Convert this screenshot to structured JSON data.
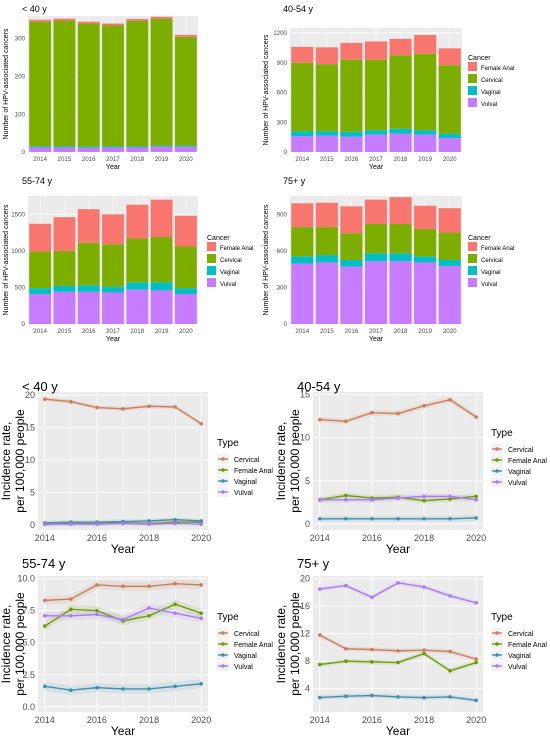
{
  "colors": {
    "Female Anal": "#F8766D",
    "Cervical": "#7CAE00",
    "Vaginal": "#00BFC4",
    "Vulval": "#C77CFF",
    "line_Cervical": "#C87E5A",
    "line_Female Anal": "#6E9A00",
    "line_Vaginal": "#3F8FB0",
    "line_Vulval": "#A97CF0",
    "panel_bg": "#EBEBEB",
    "grid": "#FFFFFF"
  },
  "chart_data": [
    {
      "type": "bar",
      "stacked": true,
      "title": "< 40 y",
      "xlabel": "Year",
      "ylabel": "Number of HPV-associated cancers",
      "categories": [
        "2014",
        "2015",
        "2016",
        "2017",
        "2018",
        "2019",
        "2020"
      ],
      "ylim": [
        0,
        360
      ],
      "yticks": [
        0,
        100,
        200,
        300
      ],
      "legend": null,
      "series": [
        {
          "name": "Vulval",
          "values": [
            12,
            12,
            11,
            12,
            12,
            14,
            14
          ]
        },
        {
          "name": "Vaginal",
          "values": [
            3,
            3,
            3,
            3,
            3,
            3,
            3
          ]
        },
        {
          "name": "Cervical",
          "values": [
            330,
            333,
            326,
            320,
            332,
            336,
            288
          ]
        },
        {
          "name": "Female Anal",
          "values": [
            5,
            5,
            5,
            5,
            5,
            5,
            5
          ]
        }
      ]
    },
    {
      "type": "bar",
      "stacked": true,
      "title": "40-54 y",
      "xlabel": "Year",
      "ylabel": "Number of HPV-associated cancers",
      "categories": [
        "2014",
        "2015",
        "2016",
        "2017",
        "2018",
        "2019",
        "2020"
      ],
      "ylim": [
        0,
        1250
      ],
      "yticks": [
        0,
        300,
        600,
        900,
        1200
      ],
      "legend": {
        "title": "Cancer",
        "entries": [
          "Female Anal",
          "Cervical",
          "Vaginal",
          "Vulval"
        ],
        "position": "right"
      },
      "series": [
        {
          "name": "Vulval",
          "values": [
            160,
            165,
            155,
            175,
            185,
            175,
            140
          ]
        },
        {
          "name": "Vaginal",
          "values": [
            50,
            45,
            50,
            45,
            50,
            45,
            45
          ]
        },
        {
          "name": "Cervical",
          "values": [
            690,
            675,
            725,
            710,
            740,
            770,
            690
          ]
        },
        {
          "name": "Female Anal",
          "values": [
            160,
            170,
            170,
            185,
            165,
            190,
            170
          ]
        }
      ]
    },
    {
      "type": "bar",
      "stacked": true,
      "title": "55-74 y",
      "xlabel": "Year",
      "ylabel": "Number of HPV-associated cancers",
      "categories": [
        "2014",
        "2015",
        "2016",
        "2017",
        "2018",
        "2019",
        "2020"
      ],
      "ylim": [
        0,
        1750
      ],
      "yticks": [
        0,
        500,
        1000,
        1500
      ],
      "legend": {
        "title": "Cancer",
        "entries": [
          "Female Anal",
          "Cervical",
          "Vaginal",
          "Vulval"
        ],
        "position": "right"
      },
      "series": [
        {
          "name": "Vulval",
          "values": [
            410,
            440,
            440,
            430,
            470,
            460,
            410
          ]
        },
        {
          "name": "Vaginal",
          "values": [
            80,
            80,
            90,
            80,
            100,
            110,
            80
          ]
        },
        {
          "name": "Cervical",
          "values": [
            500,
            480,
            580,
            580,
            600,
            620,
            570
          ]
        },
        {
          "name": "Female Anal",
          "values": [
            380,
            460,
            460,
            410,
            460,
            510,
            420
          ]
        }
      ]
    },
    {
      "type": "bar",
      "stacked": true,
      "title": "75+ y",
      "xlabel": "Year",
      "ylabel": "Number of HPV-associated cancers",
      "categories": [
        "2014",
        "2015",
        "2016",
        "2017",
        "2018",
        "2019",
        "2020"
      ],
      "ylim": [
        0,
        1050
      ],
      "yticks": [
        0,
        300,
        600,
        900
      ],
      "legend": {
        "title": "Cancer",
        "entries": [
          "Female Anal",
          "Cervical",
          "Vaginal",
          "Vulval"
        ],
        "position": "right"
      },
      "series": [
        {
          "name": "Vulval",
          "values": [
            495,
            505,
            470,
            515,
            515,
            505,
            475
          ]
        },
        {
          "name": "Vaginal",
          "values": [
            60,
            60,
            55,
            65,
            65,
            50,
            50
          ]
        },
        {
          "name": "Cervical",
          "values": [
            240,
            230,
            220,
            240,
            240,
            225,
            225
          ]
        },
        {
          "name": "Female Anal",
          "values": [
            195,
            200,
            220,
            200,
            220,
            190,
            200
          ]
        }
      ]
    },
    {
      "type": "line",
      "title": "< 40 y",
      "xlabel": "Year",
      "ylabel": "Incidence rate,\nper 100,000 people",
      "x": [
        2014,
        2015,
        2016,
        2017,
        2018,
        2019,
        2020
      ],
      "xticks": [
        2014,
        2016,
        2018,
        2020
      ],
      "ylim": [
        -0.8,
        20.5
      ],
      "yticks": [
        0,
        5,
        10,
        15,
        20
      ],
      "legend": {
        "title": "Type",
        "entries": [
          "Cervical",
          "Female Anal",
          "Vaginal",
          "Vulval"
        ],
        "position": "right"
      },
      "series": [
        {
          "name": "Cervical",
          "values": [
            19.4,
            19.0,
            18.1,
            17.9,
            18.3,
            18.2,
            15.6
          ]
        },
        {
          "name": "Female Anal",
          "values": [
            0.1,
            0.2,
            0.2,
            0.3,
            0.2,
            0.4,
            0.4
          ]
        },
        {
          "name": "Vaginal",
          "values": [
            0.3,
            0.4,
            0.4,
            0.5,
            0.6,
            0.8,
            0.6
          ]
        },
        {
          "name": "Vulval",
          "values": [
            0.1,
            0.1,
            0.1,
            0.2,
            0.1,
            0.2,
            0.1
          ]
        }
      ]
    },
    {
      "type": "line",
      "title": "40-54 y",
      "xlabel": "Year",
      "ylabel": "Incidence rate,\nper 100,000 people",
      "x": [
        2014,
        2015,
        2016,
        2017,
        2018,
        2019,
        2020
      ],
      "xticks": [
        2014,
        2016,
        2018,
        2020
      ],
      "ylim": [
        -0.7,
        15.3
      ],
      "yticks": [
        0,
        5,
        10,
        15
      ],
      "legend": {
        "title": "Type",
        "entries": [
          "Cervical",
          "Female Anal",
          "Vaginal",
          "Vulval"
        ],
        "position": "right"
      },
      "series": [
        {
          "name": "Cervical",
          "values": [
            12.1,
            11.9,
            12.9,
            12.8,
            13.7,
            14.4,
            12.4
          ]
        },
        {
          "name": "Female Anal",
          "values": [
            2.8,
            3.3,
            3.0,
            3.1,
            2.7,
            2.9,
            3.2
          ]
        },
        {
          "name": "Vaginal",
          "values": [
            0.6,
            0.6,
            0.6,
            0.6,
            0.6,
            0.6,
            0.7
          ]
        },
        {
          "name": "Vulval",
          "values": [
            2.8,
            2.8,
            2.8,
            3.0,
            3.2,
            3.2,
            2.8
          ]
        }
      ]
    },
    {
      "type": "line",
      "title": "55-74 y",
      "xlabel": "Year",
      "ylabel": "Incidence rate,\nper 100,000 people",
      "x": [
        2014,
        2015,
        2016,
        2017,
        2018,
        2019,
        2020
      ],
      "xticks": [
        2014,
        2016,
        2018,
        2020
      ],
      "ylim": [
        -0.4,
        10.2
      ],
      "yticks": [
        0.0,
        2.5,
        5.0,
        7.5,
        10.0
      ],
      "legend": {
        "title": "Type",
        "entries": [
          "Cervical",
          "Female Anal",
          "Vaginal",
          "Vulval"
        ],
        "position": "right"
      },
      "series": [
        {
          "name": "Cervical",
          "values": [
            8.3,
            8.4,
            9.5,
            9.4,
            9.4,
            9.6,
            9.5
          ]
        },
        {
          "name": "Female Anal",
          "values": [
            6.3,
            7.6,
            7.5,
            6.7,
            7.1,
            8.0,
            7.3
          ]
        },
        {
          "name": "Vaginal",
          "values": [
            1.6,
            1.3,
            1.5,
            1.4,
            1.4,
            1.6,
            1.8
          ]
        },
        {
          "name": "Vulval",
          "values": [
            7.1,
            7.1,
            7.2,
            6.8,
            7.7,
            7.3,
            6.9
          ]
        }
      ]
    },
    {
      "type": "line",
      "title": "75+ y",
      "xlabel": "Year",
      "ylabel": "Incidence rate,\nper 100,000 people",
      "x": [
        2014,
        2015,
        2016,
        2017,
        2018,
        2019,
        2020
      ],
      "xticks": [
        2014,
        2016,
        2018,
        2020
      ],
      "ylim": [
        0.6,
        20.4
      ],
      "yticks": [
        4,
        8,
        12,
        16,
        20
      ],
      "legend": {
        "title": "Type",
        "entries": [
          "Cervical",
          "Female Anal",
          "Vaginal",
          "Vulval"
        ],
        "position": "right"
      },
      "series": [
        {
          "name": "Cervical",
          "values": [
            11.8,
            9.8,
            9.7,
            9.5,
            9.6,
            9.4,
            8.3
          ]
        },
        {
          "name": "Female Anal",
          "values": [
            7.5,
            8.0,
            7.9,
            7.8,
            9.1,
            6.6,
            7.8
          ]
        },
        {
          "name": "Vaginal",
          "values": [
            2.7,
            2.9,
            3.0,
            2.8,
            2.7,
            2.8,
            2.3
          ]
        },
        {
          "name": "Vulval",
          "values": [
            18.5,
            19.0,
            17.3,
            19.4,
            18.8,
            17.5,
            16.5
          ]
        }
      ]
    }
  ]
}
